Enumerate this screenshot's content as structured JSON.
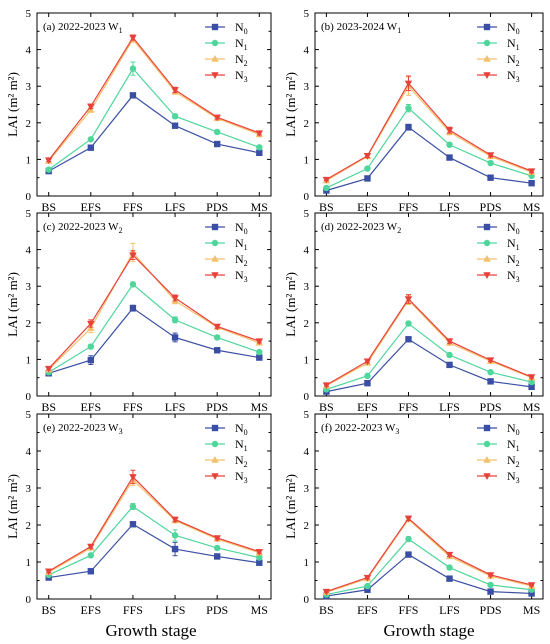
{
  "figure": {
    "xlabel_left": "Growth stage",
    "xlabel_right": "Growth stage"
  },
  "styles": {
    "series_colors": [
      "#3a4fa3",
      "#4ed69b",
      "#f5c06a",
      "#e8413b"
    ],
    "series_markers": [
      "square",
      "circle",
      "triangle-up",
      "triangle-down"
    ]
  },
  "chart_data": [
    {
      "type": "line",
      "panel_label": "(a) 2022-2023 W",
      "panel_sub": "1",
      "ylabel": "LAI (m² m²)",
      "categories": [
        "BS",
        "EFS",
        "FFS",
        "LFS",
        "PDS",
        "MS"
      ],
      "ylim": [
        0,
        5
      ],
      "yticks": [
        "0",
        "1",
        "2",
        "3",
        "4",
        "5"
      ],
      "series": [
        {
          "name": "N",
          "sub": "0",
          "values": [
            0.68,
            1.32,
            2.75,
            1.92,
            1.42,
            1.18
          ],
          "errors": [
            0.03,
            0.04,
            0.05,
            0.05,
            0.04,
            0.04
          ]
        },
        {
          "name": "N",
          "sub": "1",
          "values": [
            0.72,
            1.55,
            3.48,
            2.18,
            1.75,
            1.33
          ],
          "errors": [
            0.03,
            0.05,
            0.18,
            0.06,
            0.05,
            0.04
          ]
        },
        {
          "name": "N",
          "sub": "2",
          "values": [
            0.95,
            2.35,
            4.28,
            2.85,
            2.12,
            1.68
          ],
          "errors": [
            0.04,
            0.06,
            0.08,
            0.07,
            0.05,
            0.05
          ]
        },
        {
          "name": "N",
          "sub": "3",
          "values": [
            0.98,
            2.45,
            4.33,
            2.9,
            2.15,
            1.72
          ],
          "errors": [
            0.04,
            0.06,
            0.07,
            0.07,
            0.05,
            0.05
          ]
        }
      ]
    },
    {
      "type": "line",
      "panel_label": "(b) 2023-2024 W",
      "panel_sub": "1",
      "ylabel": "LAI (m² m²)",
      "categories": [
        "BS",
        "EFS",
        "FFS",
        "LFS",
        "PDS",
        "MS"
      ],
      "ylim": [
        0,
        5
      ],
      "yticks": [
        "0",
        "1",
        "2",
        "3",
        "4",
        "5"
      ],
      "series": [
        {
          "name": "N",
          "sub": "0",
          "values": [
            0.15,
            0.48,
            1.88,
            1.05,
            0.5,
            0.35
          ],
          "errors": [
            0.03,
            0.03,
            0.08,
            0.05,
            0.03,
            0.03
          ]
        },
        {
          "name": "N",
          "sub": "1",
          "values": [
            0.22,
            0.75,
            2.4,
            1.4,
            0.9,
            0.55
          ],
          "errors": [
            0.03,
            0.04,
            0.1,
            0.05,
            0.04,
            0.03
          ]
        },
        {
          "name": "N",
          "sub": "2",
          "values": [
            0.42,
            1.08,
            3.0,
            1.75,
            1.08,
            0.65
          ],
          "errors": [
            0.03,
            0.05,
            0.25,
            0.08,
            0.05,
            0.04
          ]
        },
        {
          "name": "N",
          "sub": "3",
          "values": [
            0.45,
            1.1,
            3.08,
            1.8,
            1.12,
            0.68
          ],
          "errors": [
            0.03,
            0.05,
            0.2,
            0.08,
            0.05,
            0.04
          ]
        }
      ]
    },
    {
      "type": "line",
      "panel_label": "(c) 2022-2023 W",
      "panel_sub": "2",
      "ylabel": "LAI (m² m²)",
      "categories": [
        "BS",
        "EFS",
        "FFS",
        "LFS",
        "PDS",
        "MS"
      ],
      "ylim": [
        0,
        5
      ],
      "yticks": [
        "0",
        "1",
        "2",
        "3",
        "4",
        "5"
      ],
      "series": [
        {
          "name": "N",
          "sub": "0",
          "values": [
            0.62,
            0.98,
            2.4,
            1.6,
            1.25,
            1.05
          ],
          "errors": [
            0.03,
            0.12,
            0.08,
            0.12,
            0.04,
            0.04
          ]
        },
        {
          "name": "N",
          "sub": "1",
          "values": [
            0.65,
            1.35,
            3.05,
            2.08,
            1.6,
            1.2
          ],
          "errors": [
            0.03,
            0.06,
            0.06,
            0.08,
            0.05,
            0.04
          ]
        },
        {
          "name": "N",
          "sub": "2",
          "values": [
            0.72,
            1.85,
            3.92,
            2.6,
            1.88,
            1.45
          ],
          "errors": [
            0.04,
            0.12,
            0.25,
            0.08,
            0.05,
            0.05
          ]
        },
        {
          "name": "N",
          "sub": "3",
          "values": [
            0.75,
            1.98,
            3.85,
            2.68,
            1.9,
            1.5
          ],
          "errors": [
            0.04,
            0.1,
            0.12,
            0.08,
            0.05,
            0.05
          ]
        }
      ]
    },
    {
      "type": "line",
      "panel_label": "(d) 2022-2023 W",
      "panel_sub": "2",
      "ylabel": "LAI (m² m²)",
      "categories": [
        "BS",
        "EFS",
        "FFS",
        "LFS",
        "PDS",
        "MS"
      ],
      "ylim": [
        0,
        5
      ],
      "yticks": [
        "0",
        "1",
        "2",
        "3",
        "4",
        "5"
      ],
      "series": [
        {
          "name": "N",
          "sub": "0",
          "values": [
            0.12,
            0.35,
            1.55,
            0.85,
            0.4,
            0.25
          ],
          "errors": [
            0.03,
            0.03,
            0.05,
            0.04,
            0.03,
            0.03
          ]
        },
        {
          "name": "N",
          "sub": "1",
          "values": [
            0.18,
            0.55,
            1.98,
            1.12,
            0.65,
            0.38
          ],
          "errors": [
            0.03,
            0.04,
            0.06,
            0.05,
            0.03,
            0.03
          ]
        },
        {
          "name": "N",
          "sub": "2",
          "values": [
            0.28,
            0.9,
            2.62,
            1.45,
            0.95,
            0.5
          ],
          "errors": [
            0.03,
            0.05,
            0.12,
            0.06,
            0.04,
            0.03
          ]
        },
        {
          "name": "N",
          "sub": "3",
          "values": [
            0.3,
            0.95,
            2.65,
            1.5,
            0.98,
            0.52
          ],
          "errors": [
            0.03,
            0.05,
            0.12,
            0.06,
            0.04,
            0.03
          ]
        }
      ]
    },
    {
      "type": "line",
      "panel_label": "(e) 2022-2023 W",
      "panel_sub": "3",
      "ylabel": "LAI (m² m²)",
      "categories": [
        "BS",
        "EFS",
        "FFS",
        "LFS",
        "PDS",
        "MS"
      ],
      "ylim": [
        0,
        5
      ],
      "yticks": [
        "0",
        "1",
        "2",
        "3",
        "4",
        "5"
      ],
      "series": [
        {
          "name": "N",
          "sub": "0",
          "values": [
            0.58,
            0.75,
            2.02,
            1.35,
            1.15,
            0.98
          ],
          "errors": [
            0.03,
            0.04,
            0.05,
            0.18,
            0.04,
            0.04
          ]
        },
        {
          "name": "N",
          "sub": "1",
          "values": [
            0.65,
            1.18,
            2.5,
            1.72,
            1.38,
            1.12
          ],
          "errors": [
            0.03,
            0.05,
            0.08,
            0.15,
            0.05,
            0.04
          ]
        },
        {
          "name": "N",
          "sub": "2",
          "values": [
            0.72,
            1.38,
            3.22,
            2.12,
            1.62,
            1.25
          ],
          "errors": [
            0.04,
            0.05,
            0.15,
            0.06,
            0.05,
            0.04
          ]
        },
        {
          "name": "N",
          "sub": "3",
          "values": [
            0.75,
            1.42,
            3.3,
            2.15,
            1.65,
            1.28
          ],
          "errors": [
            0.04,
            0.05,
            0.18,
            0.06,
            0.05,
            0.04
          ]
        }
      ]
    },
    {
      "type": "line",
      "panel_label": "(f) 2022-2023 W",
      "panel_sub": "3",
      "ylabel": "LAI (m² m²)",
      "categories": [
        "BS",
        "EFS",
        "FFS",
        "LFS",
        "PDS",
        "MS"
      ],
      "ylim": [
        0,
        5
      ],
      "yticks": [
        "0",
        "1",
        "2",
        "3",
        "4",
        "5"
      ],
      "series": [
        {
          "name": "N",
          "sub": "0",
          "values": [
            0.08,
            0.25,
            1.2,
            0.55,
            0.2,
            0.15
          ],
          "errors": [
            0.02,
            0.03,
            0.05,
            0.04,
            0.02,
            0.02
          ]
        },
        {
          "name": "N",
          "sub": "1",
          "values": [
            0.12,
            0.35,
            1.62,
            0.85,
            0.38,
            0.25
          ],
          "errors": [
            0.02,
            0.03,
            0.06,
            0.05,
            0.03,
            0.02
          ]
        },
        {
          "name": "N",
          "sub": "2",
          "values": [
            0.18,
            0.55,
            2.15,
            1.15,
            0.62,
            0.35
          ],
          "errors": [
            0.02,
            0.04,
            0.06,
            0.05,
            0.03,
            0.03
          ]
        },
        {
          "name": "N",
          "sub": "3",
          "values": [
            0.2,
            0.58,
            2.18,
            1.2,
            0.65,
            0.38
          ],
          "errors": [
            0.02,
            0.04,
            0.06,
            0.05,
            0.03,
            0.03
          ]
        }
      ]
    }
  ]
}
